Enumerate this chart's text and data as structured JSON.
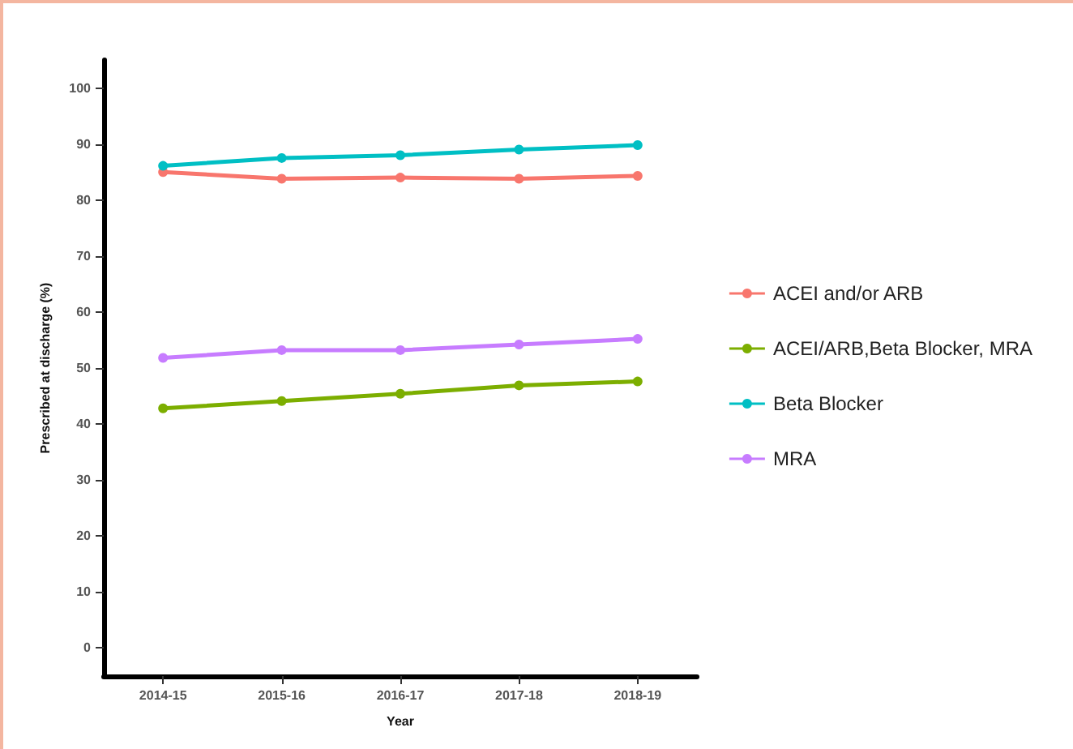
{
  "chart_data": {
    "type": "line",
    "xlabel": "Year",
    "ylabel": "Prescribed at discharge (%)",
    "categories": [
      "2014-15",
      "2015-16",
      "2016-17",
      "2017-18",
      "2018-19"
    ],
    "series": [
      {
        "name": "ACEI and/or ARB",
        "color": "#f8766d",
        "values": [
          85.0,
          83.8,
          84.0,
          83.8,
          84.3
        ]
      },
      {
        "name": "ACEI/ARB,Beta Blocker, MRA",
        "color": "#7cae00",
        "values": [
          42.8,
          44.1,
          45.4,
          46.9,
          47.6
        ]
      },
      {
        "name": "Beta Blocker",
        "color": "#00bfc4",
        "values": [
          86.1,
          87.5,
          88.0,
          89.0,
          89.8
        ]
      },
      {
        "name": "MRA",
        "color": "#c77cff",
        "values": [
          51.8,
          53.2,
          53.2,
          54.2,
          55.2
        ]
      }
    ],
    "ylim": [
      -5,
      105
    ],
    "yticks": [
      0,
      10,
      20,
      30,
      40,
      50,
      60,
      70,
      80,
      90,
      100
    ],
    "grid": false,
    "legend": "right",
    "marker": "circle",
    "line_style": "solid"
  }
}
